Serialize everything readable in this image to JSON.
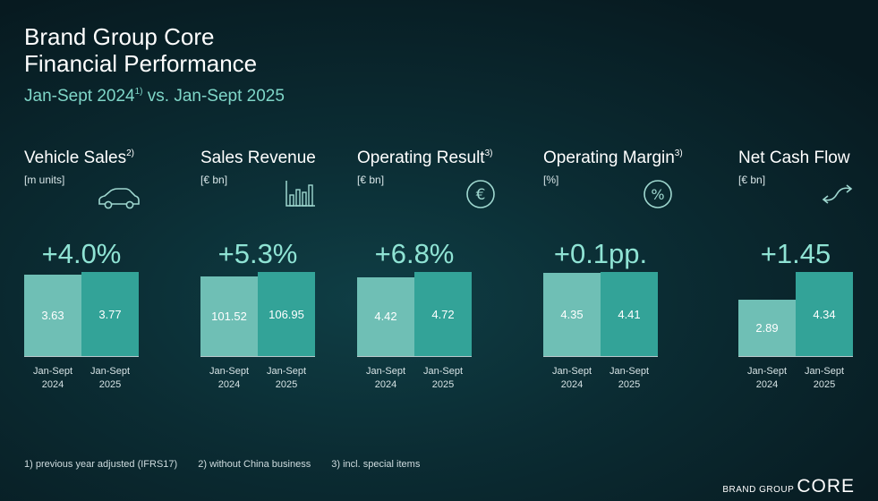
{
  "header": {
    "line1": "Brand Group Core",
    "line2": "Financial Performance",
    "period_a": "Jan-Sept 2024",
    "period_a_note": "1)",
    "period_b": " vs. Jan-Sept 2025"
  },
  "chart_data": [
    {
      "type": "bar",
      "title": "Vehicle Sales",
      "note": "2)",
      "unit": "[m units]",
      "icon": "car-icon",
      "change": "+4.0%",
      "categories": [
        "Jan-Sept\n2024",
        "Jan-Sept\n2025"
      ],
      "values": [
        3.63,
        3.77
      ],
      "labels": [
        "3.63",
        "3.77"
      ]
    },
    {
      "type": "bar",
      "title": "Sales Revenue",
      "note": "",
      "unit": "[€ bn]",
      "icon": "bar-chart-icon",
      "change": "+5.3%",
      "categories": [
        "Jan-Sept\n2024",
        "Jan-Sept\n2025"
      ],
      "values": [
        101.52,
        106.95
      ],
      "labels": [
        "101.52",
        "106.95"
      ]
    },
    {
      "type": "bar",
      "title": "Operating Result",
      "note": "3)",
      "unit": "[€ bn]",
      "icon": "euro-icon",
      "change": "+6.8%",
      "categories": [
        "Jan-Sept\n2024",
        "Jan-Sept\n2025"
      ],
      "values": [
        4.42,
        4.72
      ],
      "labels": [
        "4.42",
        "4.72"
      ]
    },
    {
      "type": "bar",
      "title": "Operating Margin",
      "note": "3)",
      "unit": "[%]",
      "icon": "percent-icon",
      "change": "+0.1pp.",
      "categories": [
        "Jan-Sept\n2024",
        "Jan-Sept\n2025"
      ],
      "values": [
        4.35,
        4.41
      ],
      "labels": [
        "4.35",
        "4.41"
      ]
    },
    {
      "type": "bar",
      "title": "Net Cash Flow",
      "note": "",
      "unit": "[€ bn]",
      "icon": "cash-flow-arrows-icon",
      "change": "+1.45",
      "categories": [
        "Jan-Sept\n2024",
        "Jan-Sept\n2025"
      ],
      "values": [
        2.89,
        4.34
      ],
      "labels": [
        "2.89",
        "4.34"
      ]
    }
  ],
  "footnotes": [
    "1) previous year adjusted (IFRS17)",
    "2) without China business",
    "3) incl. special items"
  ],
  "brand": {
    "prefix": "BRAND GROUP",
    "name": "CORE"
  },
  "colors": {
    "bar_prev": "#6fbfb5",
    "bar_curr": "#33a398",
    "accent": "#8fe3d4"
  }
}
